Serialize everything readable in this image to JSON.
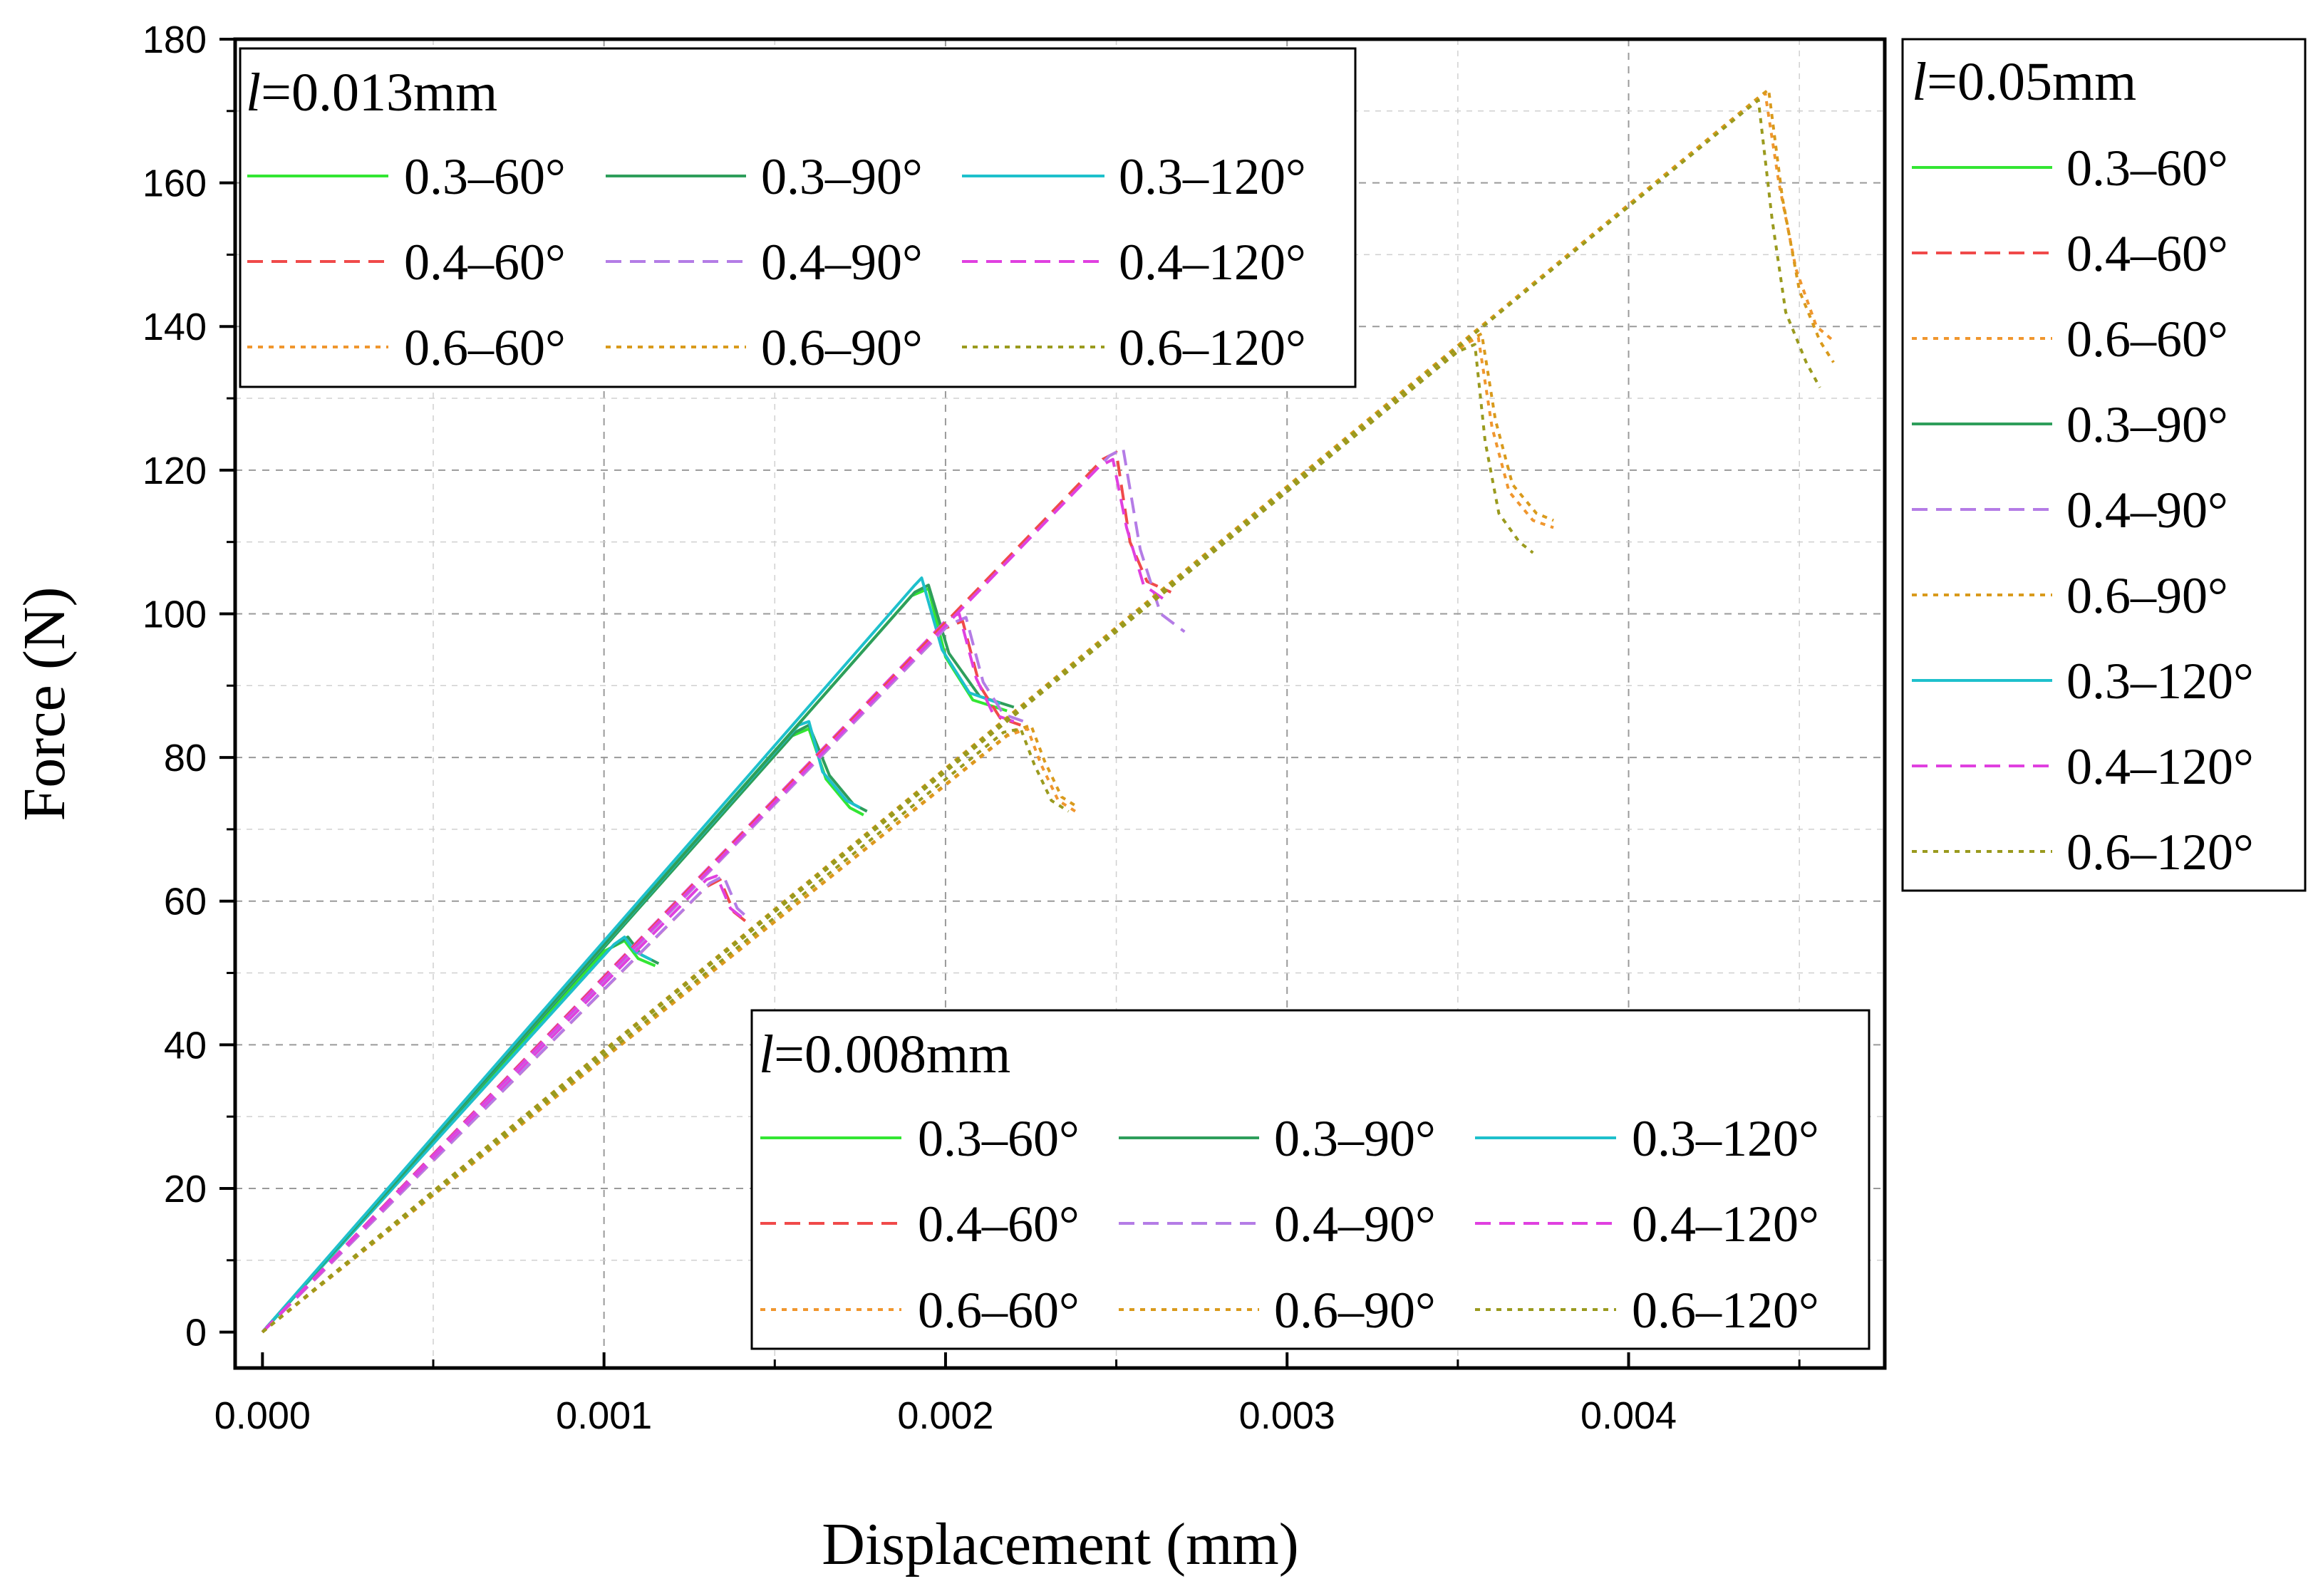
{
  "chart_data": {
    "type": "line",
    "xlabel": "Displacement (mm)",
    "ylabel": "Force (N)",
    "xlim": [
      -8e-05,
      0.00475
    ],
    "ylim": [
      -5,
      180
    ],
    "xticks": [
      "0.000",
      "0.001",
      "0.002",
      "0.003",
      "0.004"
    ],
    "xtick_values": [
      0,
      0.001,
      0.002,
      0.003,
      0.004
    ],
    "yticks": [
      "0",
      "20",
      "40",
      "60",
      "80",
      "100",
      "120",
      "140",
      "160",
      "180"
    ],
    "ytick_values": [
      0,
      20,
      40,
      60,
      80,
      100,
      120,
      140,
      160,
      180
    ],
    "grid": true,
    "colors": {
      "0.3-60": "#33e633",
      "0.3-90": "#2e9e5b",
      "0.3-120": "#1ec0cc",
      "0.4-60": "#f04a4a",
      "0.4-90": "#b47ce6",
      "0.4-120": "#e040e0",
      "0.6-60": "#f0962e",
      "0.6-90": "#d99a1c",
      "0.6-120": "#9a9a1e"
    },
    "legends": [
      {
        "title_italic": "l",
        "title_rest": "=0.013mm",
        "placement": "top-left",
        "entries": [
          "0.3–60°",
          "0.3–90°",
          "0.3–120°",
          "0.4–60°",
          "0.4–90°",
          "0.4–120°",
          "0.6–60°",
          "0.6–90°",
          "0.6–120°"
        ],
        "keys": [
          "0.3-60",
          "0.3-90",
          "0.3-120",
          "0.4-60",
          "0.4-90",
          "0.4-120",
          "0.6-60",
          "0.6-90",
          "0.6-120"
        ]
      },
      {
        "title_italic": "l",
        "title_rest": "=0.008mm",
        "placement": "bottom-right",
        "entries": [
          "0.3–60°",
          "0.3–90°",
          "0.3–120°",
          "0.4–60°",
          "0.4–90°",
          "0.4–120°",
          "0.6–60°",
          "0.6–90°",
          "0.6–120°"
        ],
        "keys": [
          "0.3-60",
          "0.3-90",
          "0.3-120",
          "0.4-60",
          "0.4-90",
          "0.4-120",
          "0.6-60",
          "0.6-90",
          "0.6-120"
        ]
      },
      {
        "title_italic": "l",
        "title_rest": "=0.05mm",
        "placement": "outside-right",
        "entries": [
          "0.3–60°",
          "0.4–60°",
          "0.6–60°",
          "0.3–90°",
          "0.4–90°",
          "0.6–90°",
          "0.3–120°",
          "0.4–120°",
          "0.6–120°"
        ],
        "keys": [
          "0.3-60",
          "0.4-60",
          "0.6-60",
          "0.3-90",
          "0.4-90",
          "0.6-90",
          "0.3-120",
          "0.4-120",
          "0.6-120"
        ]
      }
    ],
    "series": [
      {
        "name": "0.008mm 0.3–60°",
        "style": "0.3-60",
        "x": [
          0,
          0.001,
          0.00106,
          0.0011,
          0.00115
        ],
        "y": [
          0,
          53.0,
          54.5,
          52.0,
          51.0
        ]
      },
      {
        "name": "0.008mm 0.3–90°",
        "style": "0.3-90",
        "x": [
          0,
          0.00102,
          0.00107,
          0.00111,
          0.00116
        ],
        "y": [
          0,
          53.5,
          55.0,
          52.5,
          51.3
        ]
      },
      {
        "name": "0.008mm 0.3–120°",
        "style": "0.3-120",
        "x": [
          0,
          0.00103,
          0.00106,
          0.00109,
          0.00114
        ],
        "y": [
          0,
          54.0,
          55.0,
          53.0,
          51.8
        ]
      },
      {
        "name": "0.013mm 0.3–60°",
        "style": "0.3-60",
        "x": [
          0,
          0.00155,
          0.0016,
          0.00165,
          0.00172,
          0.00176
        ],
        "y": [
          0,
          83.0,
          84.0,
          77.0,
          73.0,
          72.0
        ]
      },
      {
        "name": "0.013mm 0.3–90°",
        "style": "0.3-90",
        "x": [
          0,
          0.00156,
          0.0016,
          0.00166,
          0.00173,
          0.00177
        ],
        "y": [
          0,
          83.5,
          84.5,
          77.5,
          73.5,
          72.5
        ]
      },
      {
        "name": "0.013mm 0.3–120°",
        "style": "0.3-120",
        "x": [
          0,
          0.00157,
          0.0016,
          0.00164,
          0.00171,
          0.00175
        ],
        "y": [
          0,
          84.5,
          85.0,
          78.0,
          74.0,
          73.0
        ]
      },
      {
        "name": "0.05mm 0.3–60°",
        "style": "0.3-60",
        "x": [
          0,
          0.0019,
          0.00195,
          0.002,
          0.00208,
          0.00218
        ],
        "y": [
          0,
          102.5,
          103.5,
          94.0,
          88.0,
          86.5
        ]
      },
      {
        "name": "0.05mm 0.3–90°",
        "style": "0.3-90",
        "x": [
          0,
          0.00191,
          0.00195,
          0.00201,
          0.0021,
          0.0022
        ],
        "y": [
          0,
          103.0,
          104.0,
          94.5,
          88.5,
          87.0
        ]
      },
      {
        "name": "0.05mm 0.3–120°",
        "style": "0.3-120",
        "x": [
          0,
          0.00191,
          0.00193,
          0.00199,
          0.00207,
          0.00216
        ],
        "y": [
          0,
          104.0,
          105.0,
          95.0,
          89.0,
          87.5
        ]
      },
      {
        "name": "0.008mm 0.4–60°",
        "style": "0.4-60",
        "x": [
          0,
          0.0013,
          0.00134,
          0.00138,
          0.00142
        ],
        "y": [
          0,
          62.0,
          63.0,
          58.5,
          57.0
        ]
      },
      {
        "name": "0.008mm 0.4–90°",
        "style": "0.4-90",
        "x": [
          0,
          0.00131,
          0.00135,
          0.00139,
          0.00143
        ],
        "y": [
          0,
          62.5,
          63.5,
          59.0,
          57.3
        ]
      },
      {
        "name": "0.008mm 0.4–120°",
        "style": "0.4-120",
        "x": [
          0,
          0.0013,
          0.00133,
          0.00137,
          0.00141
        ],
        "y": [
          0,
          63.0,
          63.5,
          59.0,
          57.5
        ]
      },
      {
        "name": "0.013mm 0.4–60°",
        "style": "0.4-60",
        "x": [
          0,
          0.002,
          0.00205,
          0.0021,
          0.00216,
          0.00222
        ],
        "y": [
          0,
          98.0,
          99.0,
          90.0,
          85.5,
          84.5
        ]
      },
      {
        "name": "0.013mm 0.4–90°",
        "style": "0.4-90",
        "x": [
          0,
          0.00201,
          0.00206,
          0.00211,
          0.00217,
          0.00223
        ],
        "y": [
          0,
          98.5,
          99.5,
          90.5,
          86.0,
          85.0
        ]
      },
      {
        "name": "0.013mm 0.4–120°",
        "style": "0.4-120",
        "x": [
          0,
          0.00201,
          0.00204,
          0.00209,
          0.00214,
          0.0022
        ],
        "y": [
          0,
          99.5,
          100.0,
          91.0,
          86.0,
          85.0
        ]
      },
      {
        "name": "0.05mm 0.4–60°",
        "style": "0.4-60",
        "x": [
          0,
          0.00246,
          0.0025,
          0.00254,
          0.00259,
          0.00266
        ],
        "y": [
          0,
          121.5,
          122.5,
          110.0,
          104.5,
          103.0
        ]
      },
      {
        "name": "0.05mm 0.4–90°",
        "style": "0.4-90",
        "x": [
          0,
          0.00248,
          0.00252,
          0.00257,
          0.00263,
          0.0027
        ],
        "y": [
          0,
          122.0,
          123.0,
          109.0,
          100.0,
          97.5
        ]
      },
      {
        "name": "0.05mm 0.4–120°",
        "style": "0.4-120",
        "x": [
          0,
          0.00245,
          0.00249,
          0.00253,
          0.00258,
          0.00264
        ],
        "y": [
          0,
          120.5,
          121.5,
          112.0,
          104.0,
          102.0
        ]
      },
      {
        "name": "0.013mm 0.6–60°",
        "style": "0.6-60",
        "x": [
          0,
          0.00218,
          0.00224,
          0.00228,
          0.00233,
          0.00238
        ],
        "y": [
          0,
          83.0,
          84.0,
          79.0,
          74.0,
          72.5
        ]
      },
      {
        "name": "0.013mm 0.6–90°",
        "style": "0.6-90",
        "x": [
          0,
          0.00219,
          0.00225,
          0.00229,
          0.00234,
          0.00239
        ],
        "y": [
          0,
          83.5,
          84.5,
          79.5,
          74.5,
          73.0
        ]
      },
      {
        "name": "0.013mm 0.6–120°",
        "style": "0.6-120",
        "x": [
          0,
          0.00217,
          0.00222,
          0.00226,
          0.00231,
          0.00236
        ],
        "y": [
          0,
          83.5,
          84.0,
          79.0,
          74.0,
          72.5
        ]
      },
      {
        "name": "0.05mm 0.6–60°",
        "style": "0.6-60",
        "x": [
          0,
          0.00352,
          0.00356,
          0.0036,
          0.00365,
          0.00372,
          0.00378
        ],
        "y": [
          0,
          137.5,
          138.5,
          126.0,
          117.0,
          113.0,
          112.0
        ]
      },
      {
        "name": "0.05mm 0.6–90°",
        "style": "0.6-90",
        "x": [
          0,
          0.00353,
          0.00357,
          0.00361,
          0.00366,
          0.00373,
          0.00378
        ],
        "y": [
          0,
          138.0,
          139.0,
          127.0,
          118.0,
          114.0,
          113.0
        ]
      },
      {
        "name": "0.05mm 0.6–120°",
        "style": "0.6-120",
        "x": [
          0,
          0.0035,
          0.00355,
          0.00358,
          0.00362,
          0.00368,
          0.00372
        ],
        "y": [
          0,
          136.5,
          137.5,
          124.0,
          114.0,
          110.0,
          108.5
        ]
      },
      {
        "name": "0.05mm 0.6–60° (l=0.05 upper)",
        "style": "0.6-60",
        "x": [
          0,
          0.00436,
          0.0044,
          0.00444,
          0.00449,
          0.00455,
          0.0046
        ],
        "y": [
          0,
          171.0,
          172.5,
          160.0,
          148.0,
          140.0,
          138.0
        ]
      },
      {
        "name": "0.05mm 0.6–90° (l=0.05 upper)",
        "style": "0.6-90",
        "x": [
          0,
          0.00437,
          0.00441,
          0.00445,
          0.0045,
          0.00456,
          0.0046
        ],
        "y": [
          0,
          171.5,
          173.0,
          158.0,
          145.0,
          138.0,
          135.0
        ]
      },
      {
        "name": "0.05mm 0.6–120° (l=0.05 upper)",
        "style": "0.6-120",
        "x": [
          0,
          0.00434,
          0.00438,
          0.00442,
          0.00446,
          0.00452,
          0.00456
        ],
        "y": [
          0,
          170.0,
          171.5,
          155.0,
          142.0,
          135.0,
          131.5
        ]
      }
    ]
  }
}
